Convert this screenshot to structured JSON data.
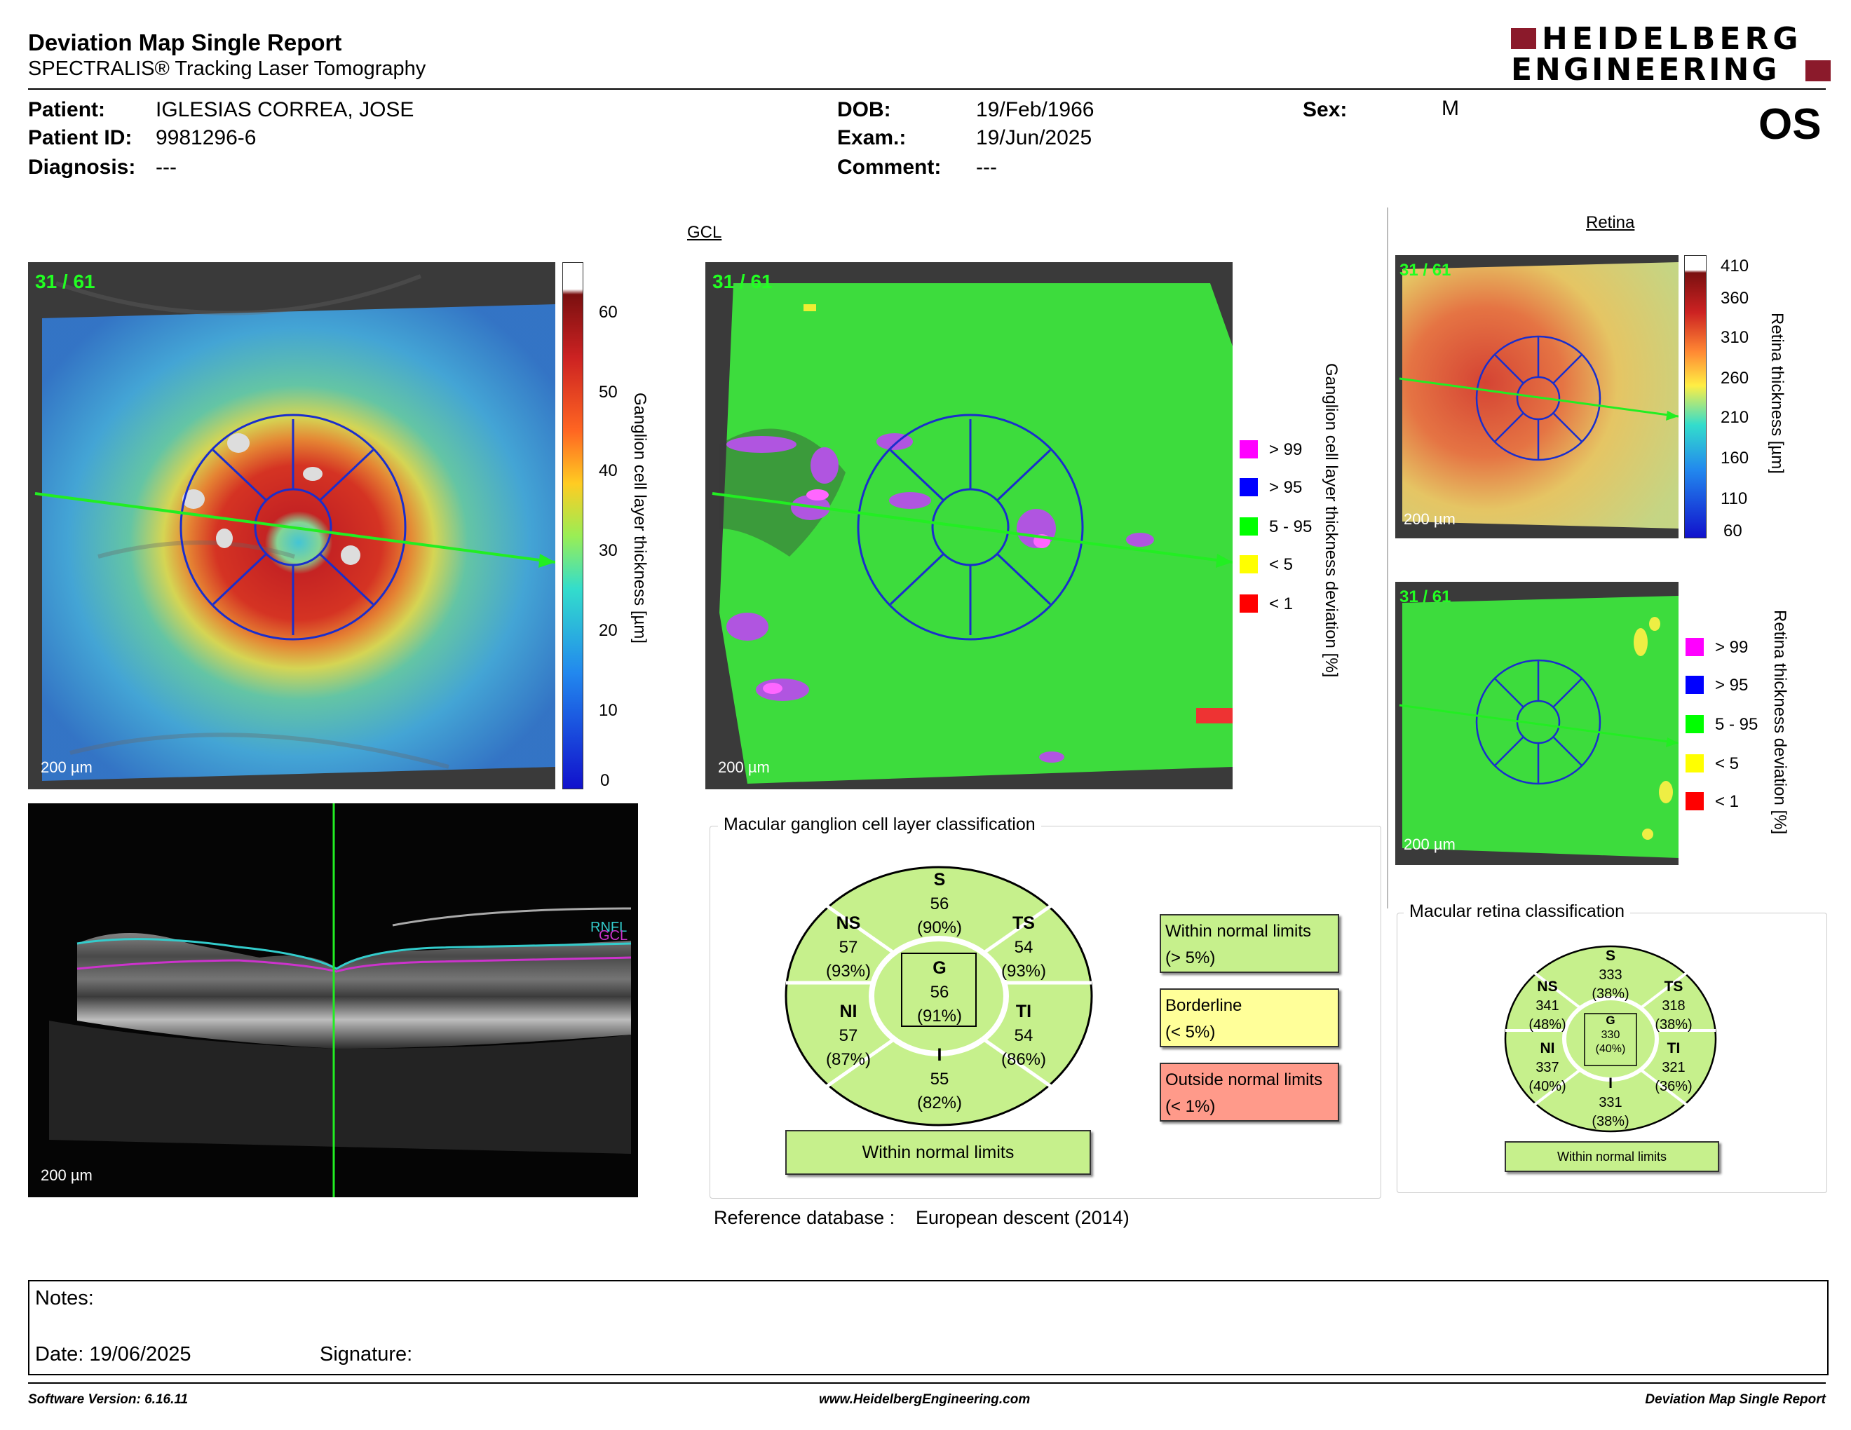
{
  "header": {
    "title": "Deviation Map Single Report",
    "subtitle": "SPECTRALIS® Tracking Laser Tomography",
    "logo_line1": "HEIDELBERG",
    "logo_line2": "ENGINEERING",
    "eye": "OS"
  },
  "patient": {
    "patient_label": "Patient:",
    "patient_value": "IGLESIAS CORREA, JOSE",
    "id_label": "Patient ID:",
    "id_value": "9981296-6",
    "diag_label": "Diagnosis:",
    "diag_value": "---",
    "dob_label": "DOB:",
    "dob_value": "19/Feb/1966",
    "exam_label": "Exam.:",
    "exam_value": "19/Jun/2025",
    "comment_label": "Comment:",
    "comment_value": "---",
    "sex_label": "Sex:",
    "sex_value": "M"
  },
  "gcl": {
    "section_title": "GCL",
    "frame_label": "31 / 61",
    "scale_label": "200 µm",
    "colorbar_ticks": [
      "60",
      "50",
      "40",
      "30",
      "20",
      "10",
      "0"
    ],
    "colorbar_title": "Ganglion cell layer thickness [µm]",
    "deviation_title": "Ganglion cell layer thickness deviation [%]",
    "legend": [
      {
        "label": "> 99",
        "color": "#ff00ff"
      },
      {
        "label": "> 95",
        "color": "#0000ff"
      },
      {
        "label": "5 - 95",
        "color": "#00ff00"
      },
      {
        "label": "< 5",
        "color": "#ffff00"
      },
      {
        "label": "< 1",
        "color": "#ff0000"
      }
    ]
  },
  "bscan": {
    "scale_label": "200 µm",
    "rnfl_label": "RNFL",
    "gcl_label": "GCL"
  },
  "retina": {
    "section_title": "Retina",
    "frame_label": "31 / 61",
    "scale_label": "200 µm",
    "colorbar_ticks": [
      "410",
      "360",
      "310",
      "260",
      "210",
      "160",
      "110",
      "60"
    ],
    "colorbar_title": "Retina thickness [µm]",
    "deviation_title": "Retina thickness deviation [%]",
    "legend": [
      {
        "label": "> 99",
        "color": "#ff00ff"
      },
      {
        "label": "> 95",
        "color": "#0000ff"
      },
      {
        "label": "5 - 95",
        "color": "#00ff00"
      },
      {
        "label": "< 5",
        "color": "#ffff00"
      },
      {
        "label": "< 1",
        "color": "#ff0000"
      }
    ]
  },
  "gcl_classification": {
    "title": "Macular ganglion cell layer classification",
    "sectors": {
      "S": {
        "name": "S",
        "value": "56",
        "pct": "(90%)"
      },
      "NS": {
        "name": "NS",
        "value": "57",
        "pct": "(93%)"
      },
      "TS": {
        "name": "TS",
        "value": "54",
        "pct": "(93%)"
      },
      "G": {
        "name": "G",
        "value": "56",
        "pct": "(91%)"
      },
      "NI": {
        "name": "NI",
        "value": "57",
        "pct": "(87%)"
      },
      "TI": {
        "name": "TI",
        "value": "54",
        "pct": "(86%)"
      },
      "I": {
        "name": "I",
        "value": "55",
        "pct": "(82%)"
      }
    },
    "result": "Within normal limits",
    "legend": [
      {
        "line1": "Within normal limits",
        "line2": "(> 5%)",
        "color": "#c6f08c"
      },
      {
        "line1": "Borderline",
        "line2": "(< 5%)",
        "color": "#ffff99"
      },
      {
        "line1": "Outside normal limits",
        "line2": "(< 1%)",
        "color": "#ff9a8a"
      }
    ],
    "sector_color": "#c6f08c",
    "reference_label": "Reference database :",
    "reference_value": "European descent (2014)"
  },
  "retina_classification": {
    "title": "Macular retina classification",
    "sectors": {
      "S": {
        "name": "S",
        "value": "333",
        "pct": "(38%)"
      },
      "NS": {
        "name": "NS",
        "value": "341",
        "pct": "(48%)"
      },
      "TS": {
        "name": "TS",
        "value": "318",
        "pct": "(38%)"
      },
      "G": {
        "name": "G",
        "value": "330",
        "pct": "(40%)"
      },
      "NI": {
        "name": "NI",
        "value": "337",
        "pct": "(40%)"
      },
      "TI": {
        "name": "TI",
        "value": "321",
        "pct": "(36%)"
      },
      "I": {
        "name": "I",
        "value": "331",
        "pct": "(38%)"
      }
    },
    "result": "Within normal limits"
  },
  "notes": {
    "notes_label": "Notes:",
    "date_label": "Date: 19/06/2025",
    "signature_label": "Signature:"
  },
  "footer": {
    "software": "Software Version: 6.16.11",
    "website": "www.HeidelbergEngineering.com",
    "report": "Deviation Map Single Report"
  }
}
